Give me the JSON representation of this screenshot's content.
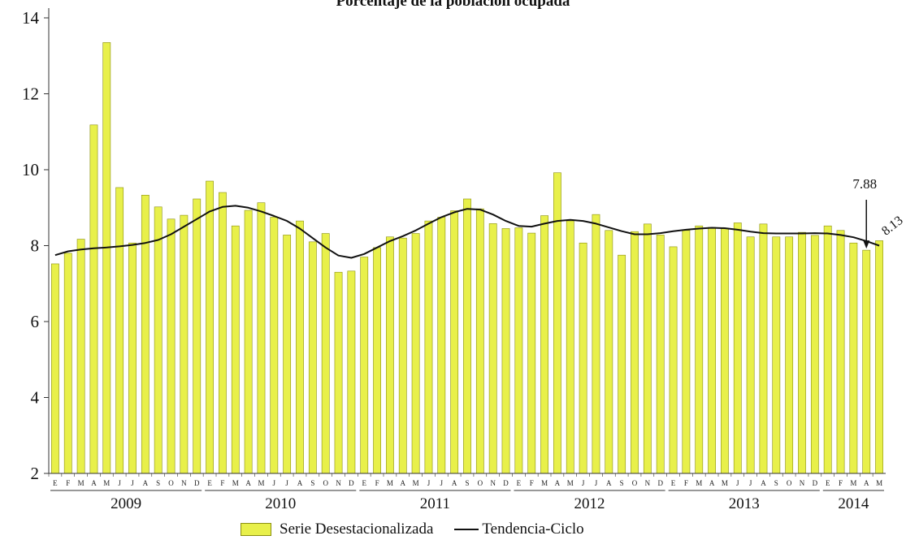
{
  "chart_data": {
    "type": "bar",
    "title": "Porcentaje de la población ocupada",
    "xlabel": "",
    "ylabel": "",
    "ylim": [
      2,
      14
    ],
    "yticks": [
      2,
      4,
      6,
      8,
      10,
      12,
      14
    ],
    "month_labels": [
      "E",
      "F",
      "M",
      "A",
      "M",
      "J",
      "J",
      "A",
      "S",
      "O",
      "N",
      "D"
    ],
    "years": [
      "2009",
      "2010",
      "2011",
      "2012",
      "2013",
      "2014"
    ],
    "series": [
      {
        "name": "Serie Desestacionalizada",
        "kind": "bar",
        "color": "#e8f04a",
        "values": [
          7.52,
          7.8,
          8.17,
          11.18,
          13.35,
          9.53,
          8.07,
          9.33,
          9.02,
          8.7,
          8.8,
          9.23,
          9.7,
          9.4,
          8.52,
          8.93,
          9.13,
          8.75,
          8.28,
          8.65,
          8.1,
          8.32,
          7.3,
          7.33,
          7.7,
          7.95,
          8.23,
          8.2,
          8.32,
          8.65,
          8.75,
          8.92,
          9.23,
          8.97,
          8.58,
          8.45,
          8.47,
          8.33,
          8.79,
          9.92,
          8.65,
          8.07,
          8.82,
          8.4,
          7.75,
          8.37,
          8.57,
          8.28,
          7.97,
          8.4,
          8.52,
          8.48,
          8.45,
          8.6,
          8.23,
          8.57,
          8.23,
          8.23,
          8.35,
          8.27,
          8.52,
          8.4,
          8.07,
          7.88,
          8.13
        ]
      },
      {
        "name": "Tendencia-Ciclo",
        "kind": "line",
        "color": "#111111",
        "values": [
          7.75,
          7.85,
          7.9,
          7.93,
          7.95,
          7.98,
          8.02,
          8.07,
          8.15,
          8.3,
          8.5,
          8.7,
          8.9,
          9.02,
          9.05,
          9.0,
          8.9,
          8.78,
          8.65,
          8.45,
          8.2,
          7.95,
          7.74,
          7.68,
          7.78,
          7.95,
          8.12,
          8.25,
          8.4,
          8.58,
          8.75,
          8.88,
          8.97,
          8.95,
          8.82,
          8.65,
          8.52,
          8.5,
          8.58,
          8.65,
          8.68,
          8.65,
          8.58,
          8.48,
          8.38,
          8.3,
          8.3,
          8.33,
          8.38,
          8.42,
          8.45,
          8.47,
          8.46,
          8.42,
          8.37,
          8.33,
          8.32,
          8.32,
          8.32,
          8.33,
          8.32,
          8.28,
          8.22,
          8.12,
          8.0
        ]
      }
    ],
    "annotations": [
      {
        "text": "7.88",
        "index": 63,
        "arrow": true
      },
      {
        "text": "8.13",
        "index": 64,
        "rotated": true
      }
    ],
    "legend": "bottom-center",
    "grid": false
  }
}
